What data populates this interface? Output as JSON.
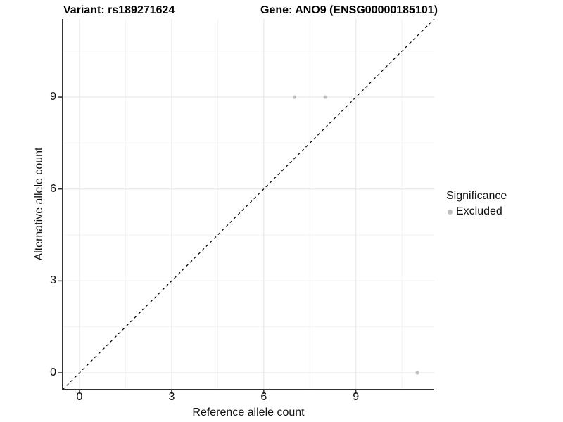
{
  "titles": {
    "left": "Variant: rs189271624",
    "right": "Gene: ANO9 (ENSG00000185101)"
  },
  "chart_data": {
    "type": "scatter",
    "xlabel": "Reference allele count",
    "ylabel": "Alternative allele count",
    "xlim": [
      -0.55,
      11.55
    ],
    "ylim": [
      -0.55,
      11.55
    ],
    "x_major_ticks": [
      0,
      3,
      6,
      9
    ],
    "y_major_ticks": [
      0,
      3,
      6,
      9
    ],
    "x_minor_gridlines": [
      1.5,
      4.5,
      7.5,
      10.5
    ],
    "y_minor_gridlines": [
      1.5,
      4.5,
      7.5,
      10.5
    ],
    "grid": true,
    "identity_line": {
      "style": "dashed",
      "color": "#000000",
      "from": [
        -0.55,
        -0.55
      ],
      "to": [
        11.55,
        11.55
      ]
    },
    "series": [
      {
        "name": "Excluded",
        "color": "#bebebe",
        "points": [
          [
            7,
            9
          ],
          [
            8,
            9
          ],
          [
            11,
            0
          ]
        ]
      }
    ],
    "legend": {
      "title": "Significance",
      "position": "right",
      "entries": [
        {
          "label": "Excluded",
          "color": "#bebebe"
        }
      ]
    },
    "colors": {
      "axis_line": "#333333",
      "tick_mark": "#333333",
      "grid_major": "#e8e8e8",
      "grid_minor": "#f3f3f3",
      "text": "#111111"
    }
  }
}
